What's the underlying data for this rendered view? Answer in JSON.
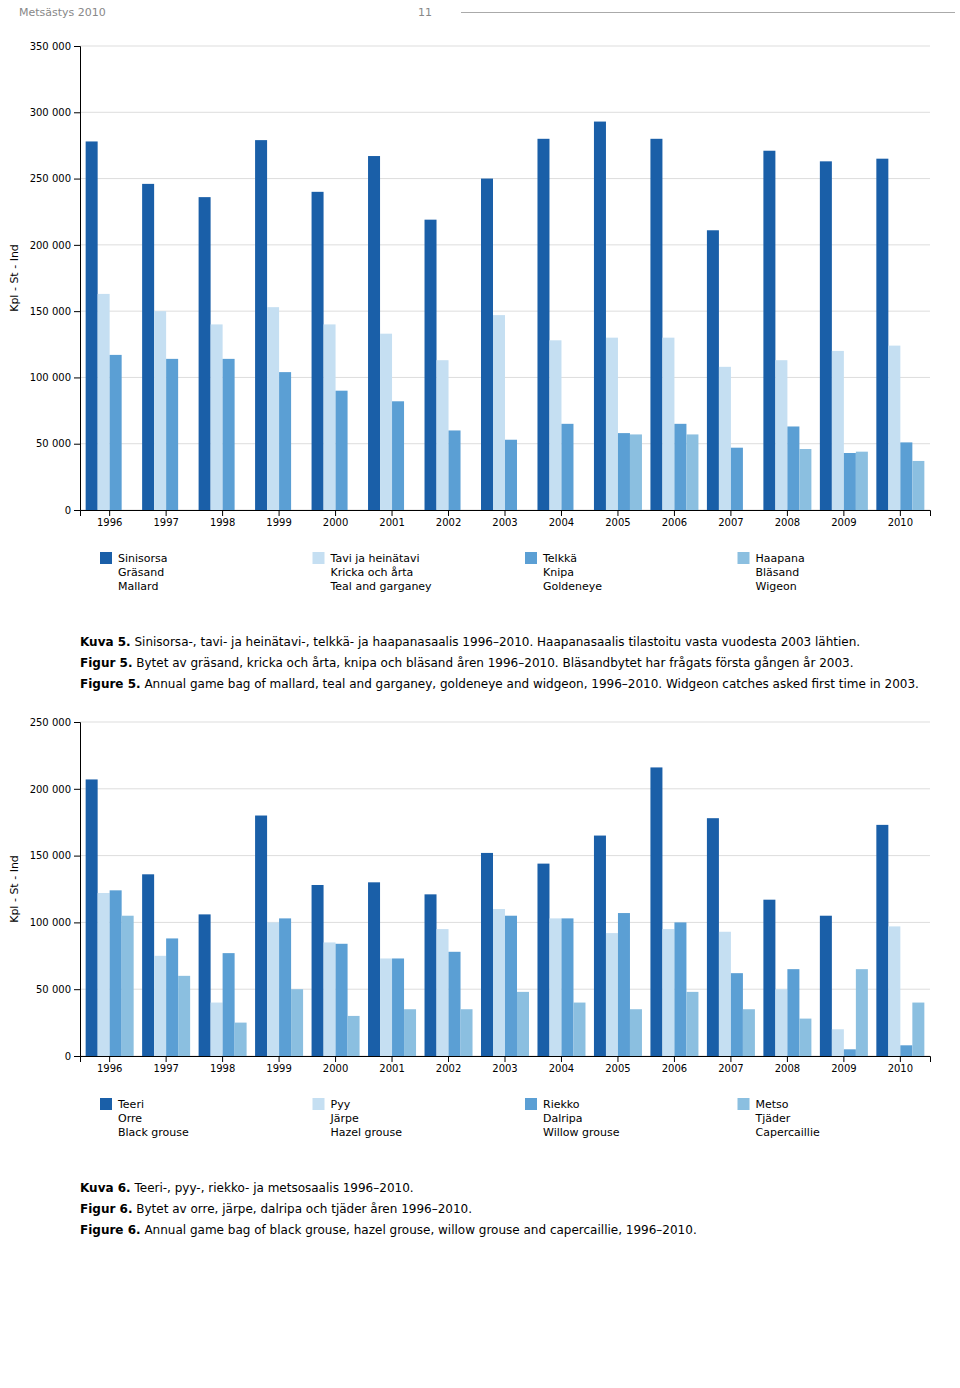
{
  "chart_data": [
    {
      "type": "bar",
      "annotations": [
        "Metsästys 2010",
        "11"
      ],
      "y_label": "Kpl - St - Ind",
      "categories": [
        "1996",
        "1997",
        "1998",
        "1999",
        "2000",
        "2001",
        "2002",
        "2003",
        "2004",
        "2005",
        "2006",
        "2007",
        "2008",
        "2009",
        "2010"
      ],
      "series": [
        {
          "name": "Sinisorsa\nGräsand\nMallard",
          "color": "#1a5fa8",
          "values": [
            278000,
            246000,
            236000,
            279000,
            240000,
            267000,
            219000,
            250000,
            280000,
            293000,
            280000,
            211000,
            271000,
            263000,
            265000
          ]
        },
        {
          "name": "Tavi ja heinätavi\nKricka och årta\nTeal and garganey",
          "color": "#c5dff2",
          "values": [
            163000,
            150000,
            140000,
            153000,
            140000,
            133000,
            113000,
            147000,
            128000,
            130000,
            130000,
            108000,
            113000,
            120000,
            124000
          ]
        },
        {
          "name": "Telkkä\nKnipa\nGoldeneye",
          "color": "#5b9fd4",
          "values": [
            117000,
            114000,
            114000,
            104000,
            90000,
            82000,
            60000,
            53000,
            65000,
            58000,
            65000,
            47000,
            63000,
            43000,
            51000
          ]
        },
        {
          "name": "Haapana\nBläsand\nWigeon",
          "color": "#8bbfe0",
          "values": [
            0,
            0,
            0,
            0,
            0,
            0,
            0,
            0,
            0,
            57000,
            57000,
            0,
            46000,
            44000,
            37000
          ]
        }
      ],
      "ylim": [
        0,
        350000
      ],
      "yticks": [
        0,
        {
          "value": 50000,
          "label": "50 000"
        },
        {
          "value": 100000,
          "label": "100 000"
        },
        {
          "value": 150000,
          "label": "150 000"
        },
        {
          "value": 200000,
          "label": "200 000"
        },
        {
          "value": 250000,
          "label": "250 000"
        },
        {
          "value": 300000,
          "label": "300 000"
        },
        {
          "value": 350000,
          "label": "350 000"
        }
      ],
      "grid": true,
      "caption": [
        [
          "Kuva 5.",
          " Sinisorsa-, tavi- ja heinätavi-, telkkä- ja haapanasaalis 1996–2010. Haapanasaalis tilastoitu vasta vuodesta 2003 lähtien."
        ],
        [
          "Figur 5.",
          " Bytet av gräsand, kricka och årta, knipa och bläsand åren 1996–2010. Bläsandbytet har frågats första gången år 2003."
        ],
        [
          "Figure 5.",
          " Annual game bag of mallard, teal and garganey, goldeneye and widgeon, 1996–2010. Widgeon catches asked first time in 2003."
        ]
      ]
    },
    {
      "type": "bar",
      "y_label": "Kpl - St - Ind",
      "categories": [
        "1996",
        "1997",
        "1998",
        "1999",
        "2000",
        "2001",
        "2002",
        "2003",
        "2004",
        "2005",
        "2006",
        "2007",
        "2008",
        "2009",
        "2010"
      ],
      "series": [
        {
          "name": "Teeri\nOrre\nBlack grouse",
          "color": "#1a5fa8",
          "values": [
            207000,
            136000,
            106000,
            180000,
            128000,
            130000,
            121000,
            152000,
            144000,
            165000,
            216000,
            178000,
            117000,
            105000,
            173000
          ]
        },
        {
          "name": "Pyy\nJärpe\nHazel grouse",
          "color": "#c5dff2",
          "values": [
            122000,
            75000,
            40000,
            100000,
            85000,
            73000,
            95000,
            110000,
            103000,
            92000,
            95000,
            93000,
            50000,
            20000,
            97000
          ]
        },
        {
          "name": "Riekko\nDalripa\nWillow grouse",
          "color": "#5b9fd4",
          "values": [
            124000,
            88000,
            77000,
            103000,
            84000,
            73000,
            78000,
            105000,
            103000,
            107000,
            100000,
            62000,
            65000,
            5000,
            8000
          ]
        },
        {
          "name": "Metso\nTjäder\nCapercaillie",
          "color": "#8bbfe0",
          "values": [
            105000,
            60000,
            25000,
            50000,
            30000,
            35000,
            35000,
            48000,
            40000,
            35000,
            48000,
            35000,
            28000,
            65000,
            40000
          ]
        }
      ],
      "ylim": [
        0,
        250000
      ],
      "yticks": [
        0,
        {
          "value": 50000,
          "label": "50 000"
        },
        {
          "value": 100000,
          "label": "100 000"
        },
        {
          "value": 150000,
          "label": "150 000"
        },
        {
          "value": 200000,
          "label": "200 000"
        },
        {
          "value": 250000,
          "label": "250 000"
        }
      ],
      "grid": true,
      "caption": [
        [
          "Kuva 6.",
          " Teeri-, pyy-, riekko- ja metsosaalis 1996–2010."
        ],
        [
          "Figur 6.",
          " Bytet av orre, järpe, dalripa och tjäder åren 1996–2010."
        ],
        [
          "Figure 6.",
          " Annual game bag of black grouse, hazel grouse, willow grouse and capercaillie, 1996–2010."
        ]
      ]
    }
  ]
}
